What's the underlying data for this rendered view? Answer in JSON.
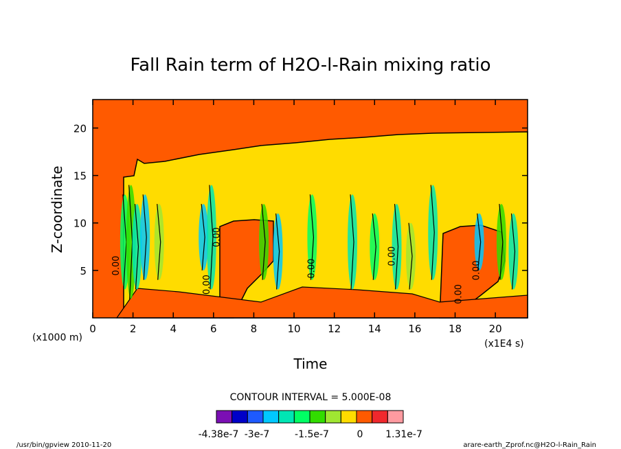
{
  "chart_data": {
    "type": "heatmap",
    "title": "Fall Rain term of H2O-l-Rain mixing ratio",
    "xlabel": "Time",
    "ylabel": "Z-coordinate",
    "x_scale_note": "(x1E4 s)",
    "y_scale_note": "(x1000 m)",
    "xlim": [
      0,
      21.6
    ],
    "ylim": [
      0,
      23
    ],
    "x_ticks": [
      0,
      2,
      4,
      6,
      8,
      10,
      12,
      14,
      16,
      18,
      20
    ],
    "y_ticks": [
      5,
      10,
      15,
      20
    ],
    "contour_interval": "CONTOUR INTERVAL = 5.000E-08",
    "contour_labels": [
      "0.00",
      "0.00",
      "0.00",
      "0.00",
      "0.00",
      "0.00",
      "0.00"
    ],
    "colorbar": {
      "colors": [
        "#7b0fb4",
        "#0000c8",
        "#1e5aff",
        "#00c8ff",
        "#00e6b4",
        "#00ff64",
        "#32dc00",
        "#a0e632",
        "#ffdc00",
        "#ff5a00",
        "#f0282d",
        "#ff9aa0"
      ],
      "tick_labels": [
        "-4.38e-7",
        "-3e-7",
        "-1.5e-7",
        "0",
        "1.31e-7"
      ]
    },
    "background_color": "#ff5a00",
    "rain_region_color": "#ffdc00",
    "grid": false
  },
  "footer": {
    "left": "/usr/bin/gpview   2010-11-20",
    "right": "arare-earth_Zprof.nc@H2O-l-Rain_Rain"
  }
}
